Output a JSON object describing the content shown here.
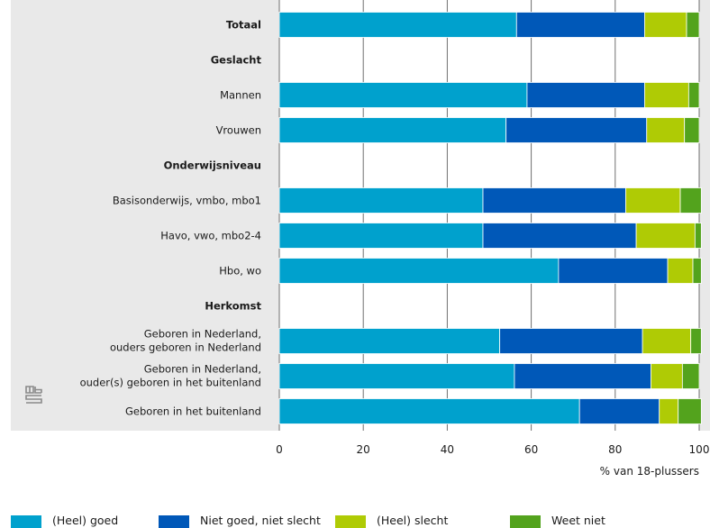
{
  "chart_data": {
    "type": "bar",
    "orientation": "horizontal",
    "stacked": true,
    "xlabel": "% van 18-plussers",
    "xlim": [
      0,
      100
    ],
    "xticks": [
      0,
      20,
      40,
      60,
      80,
      100
    ],
    "grid": true,
    "legend_position": "bottom",
    "categories": [
      {
        "label": "Totaal",
        "bold": true,
        "values": [
          56.5,
          30.5,
          10,
          3
        ]
      },
      {
        "label": "Geslacht",
        "bold": true,
        "values": null
      },
      {
        "label": "Mannen",
        "bold": false,
        "values": [
          59,
          28,
          10.5,
          2.5
        ]
      },
      {
        "label": "Vrouwen",
        "bold": false,
        "values": [
          54,
          33.5,
          9,
          3.5
        ]
      },
      {
        "label": "Onderwijsniveau",
        "bold": true,
        "values": null
      },
      {
        "label": "Basisonderwijs, vmbo, mbo1",
        "bold": false,
        "values": [
          48.5,
          34,
          13,
          5
        ]
      },
      {
        "label": "Havo, vwo, mbo2-4",
        "bold": false,
        "values": [
          48.5,
          36.5,
          14,
          1.5
        ]
      },
      {
        "label": "Hbo, wo",
        "bold": false,
        "values": [
          66.5,
          26,
          6,
          2
        ]
      },
      {
        "label": "Herkomst",
        "bold": true,
        "values": null
      },
      {
        "label": [
          "Geboren in Nederland,",
          "ouders geboren in Nederland"
        ],
        "bold": false,
        "values": [
          52.5,
          34,
          11.5,
          2.5
        ]
      },
      {
        "label": [
          "Geboren in Nederland,",
          "ouder(s) geboren in het buitenland"
        ],
        "bold": false,
        "values": [
          56,
          32.5,
          7.5,
          4
        ]
      },
      {
        "label": "Geboren in het buitenland",
        "bold": false,
        "values": [
          71.5,
          19,
          4.5,
          5.5
        ]
      }
    ],
    "series": [
      {
        "name": "(Heel) goed",
        "color": "#00a1cd"
      },
      {
        "name": "Niet goed, niet slecht",
        "color": "#0058b8"
      },
      {
        "name": "(Heel) slecht",
        "color": "#afcb05"
      },
      {
        "name": "Weet niet",
        "color": "#53a31d"
      }
    ]
  },
  "logo": {
    "icon": "cbs-logo-icon"
  }
}
